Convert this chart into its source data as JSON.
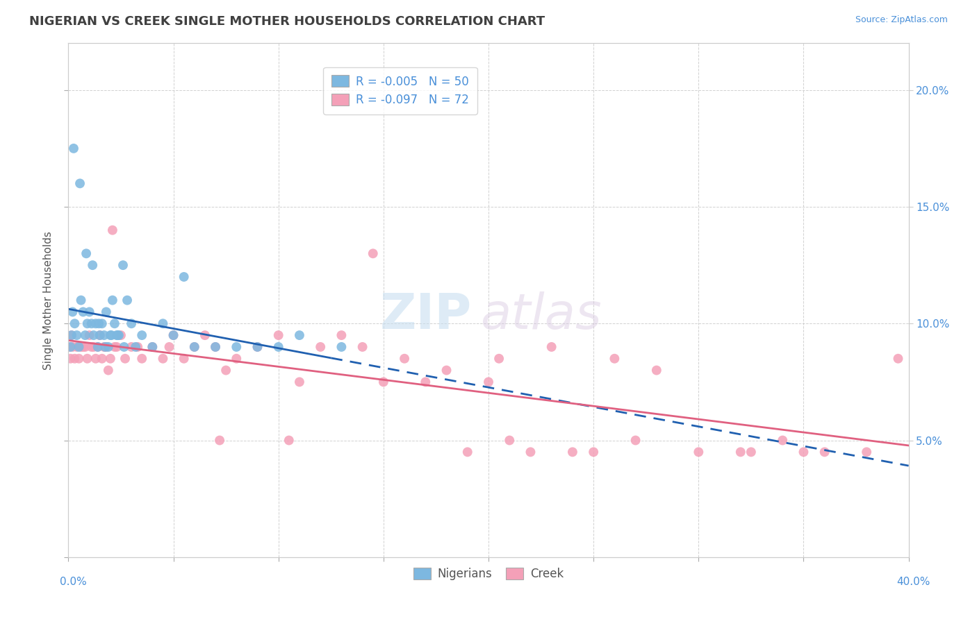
{
  "title": "NIGERIAN VS CREEK SINGLE MOTHER HOUSEHOLDS CORRELATION CHART",
  "source": "Source: ZipAtlas.com",
  "ylabel": "Single Mother Households",
  "xmin": 0.0,
  "xmax": 40.0,
  "ymin": 0.0,
  "ymax": 22.0,
  "legend_r1": "-0.005",
  "legend_n1": "50",
  "legend_r2": "-0.097",
  "legend_n2": "72",
  "color_nigerian": "#7db8e0",
  "color_creek": "#f4a0b8",
  "line_color_nigerian": "#2060b0",
  "line_color_creek": "#e06080",
  "watermark_zip": "ZIP",
  "watermark_atlas": "atlas",
  "nigerian_x": [
    0.1,
    0.15,
    0.2,
    0.3,
    0.4,
    0.5,
    0.6,
    0.7,
    0.8,
    0.9,
    1.0,
    1.1,
    1.2,
    1.3,
    1.4,
    1.5,
    1.6,
    1.7,
    1.8,
    1.9,
    2.0,
    2.1,
    2.2,
    2.3,
    2.4,
    2.6,
    2.8,
    3.0,
    3.5,
    4.0,
    4.5,
    5.0,
    5.5,
    6.0,
    7.0,
    8.0,
    9.0,
    10.0,
    11.0,
    13.0,
    0.25,
    0.55,
    0.85,
    1.15,
    1.45,
    1.75,
    2.05,
    2.35,
    2.65,
    3.2
  ],
  "nigerian_y": [
    9.0,
    9.5,
    10.5,
    10.0,
    9.5,
    9.0,
    11.0,
    10.5,
    9.5,
    10.0,
    10.5,
    10.0,
    9.5,
    10.0,
    9.0,
    9.5,
    10.0,
    9.5,
    10.5,
    9.0,
    9.5,
    11.0,
    10.0,
    9.5,
    9.5,
    12.5,
    11.0,
    10.0,
    9.5,
    9.0,
    10.0,
    9.5,
    12.0,
    9.0,
    9.0,
    9.0,
    9.0,
    9.0,
    9.5,
    9.0,
    17.5,
    16.0,
    13.0,
    12.5,
    10.0,
    9.0,
    9.5,
    9.5,
    9.0,
    9.0
  ],
  "nigerian_x_dash_start": 12.5,
  "creek_x": [
    0.05,
    0.1,
    0.15,
    0.2,
    0.3,
    0.4,
    0.5,
    0.6,
    0.7,
    0.8,
    0.9,
    1.0,
    1.1,
    1.2,
    1.3,
    1.4,
    1.5,
    1.6,
    1.7,
    1.8,
    1.9,
    2.0,
    2.1,
    2.2,
    2.3,
    2.5,
    2.7,
    3.0,
    3.3,
    3.5,
    4.0,
    4.5,
    5.0,
    5.5,
    6.0,
    6.5,
    7.0,
    7.5,
    8.0,
    9.0,
    10.0,
    11.0,
    12.0,
    13.0,
    14.5,
    15.0,
    16.0,
    17.0,
    18.0,
    19.0,
    20.0,
    21.0,
    22.0,
    23.0,
    24.0,
    25.0,
    26.0,
    27.0,
    28.0,
    30.0,
    32.0,
    34.0,
    35.0,
    36.0,
    38.0,
    39.5,
    4.8,
    7.2,
    10.5,
    14.0,
    20.5,
    32.5
  ],
  "creek_y": [
    9.0,
    8.5,
    9.5,
    9.0,
    8.5,
    9.0,
    8.5,
    9.0,
    9.0,
    9.0,
    8.5,
    9.5,
    9.0,
    9.0,
    8.5,
    9.0,
    9.5,
    8.5,
    9.0,
    9.0,
    8.0,
    8.5,
    14.0,
    9.0,
    9.0,
    9.5,
    8.5,
    9.0,
    9.0,
    8.5,
    9.0,
    8.5,
    9.5,
    8.5,
    9.0,
    9.5,
    9.0,
    8.0,
    8.5,
    9.0,
    9.5,
    7.5,
    9.0,
    9.5,
    13.0,
    7.5,
    8.5,
    7.5,
    8.0,
    4.5,
    7.5,
    5.0,
    4.5,
    9.0,
    4.5,
    4.5,
    8.5,
    5.0,
    8.0,
    4.5,
    4.5,
    5.0,
    4.5,
    4.5,
    4.5,
    8.5,
    9.0,
    5.0,
    5.0,
    9.0,
    8.5,
    4.5
  ]
}
